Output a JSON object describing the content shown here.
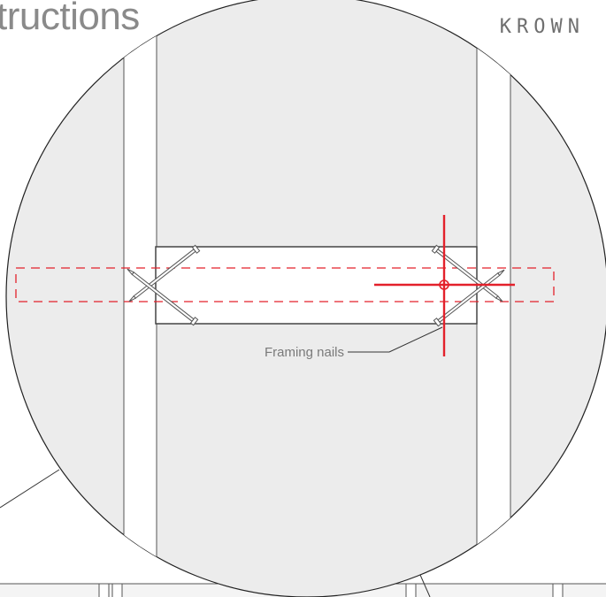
{
  "header": {
    "title": "tructions",
    "brand": "KROWN"
  },
  "callouts": {
    "framing_nails": "Framing nails"
  },
  "colors": {
    "circle_fill": "#ececec",
    "stud_fill": "#ffffff",
    "line": "#555555",
    "marker": "#e3212b"
  },
  "icons": {
    "crosshair": "crosshair-icon",
    "nail": "nail-icon"
  }
}
